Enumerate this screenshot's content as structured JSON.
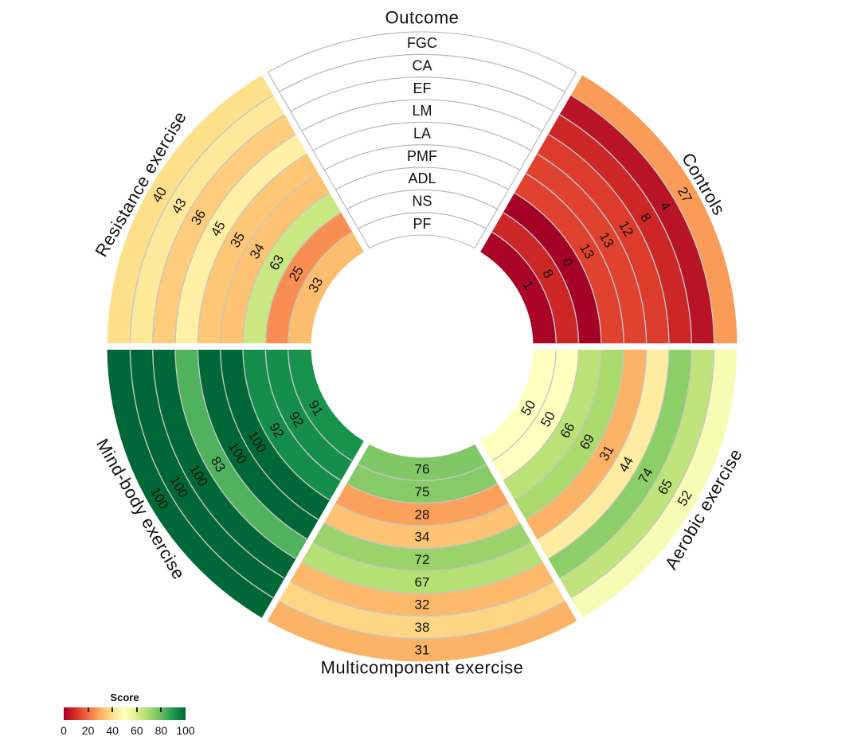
{
  "chart_data": {
    "type": "heatmap",
    "subtype": "circular-annular-heatmap",
    "rings_outer_to_inner": [
      "FGC",
      "CA",
      "EF",
      "LM",
      "LA",
      "PMF",
      "ADL",
      "NS",
      "PF"
    ],
    "sectors": [
      {
        "name": "Outcome",
        "start_deg": 60,
        "end_deg": 120,
        "role": "ring-label-sector",
        "values_outer_to_inner": null
      },
      {
        "name": "Controls",
        "start_deg": 0,
        "end_deg": 60,
        "role": "data",
        "values_outer_to_inner": [
          27,
          4,
          8,
          12,
          13,
          13,
          0,
          8,
          1
        ]
      },
      {
        "name": "Resistance exercise",
        "start_deg": 120,
        "end_deg": 180,
        "role": "data",
        "values_outer_to_inner": [
          40,
          43,
          36,
          45,
          35,
          34,
          63,
          25,
          33
        ]
      },
      {
        "name": "Mind-body exercise",
        "start_deg": 180,
        "end_deg": 240,
        "role": "data",
        "values_outer_to_inner": [
          100,
          100,
          100,
          83,
          100,
          100,
          92,
          92,
          91
        ]
      },
      {
        "name": "Multicomponent exercise",
        "start_deg": 240,
        "end_deg": 300,
        "role": "data",
        "values_outer_to_inner": [
          31,
          38,
          32,
          67,
          72,
          34,
          28,
          75,
          76
        ]
      },
      {
        "name": "Aerobic exercise",
        "start_deg": 300,
        "end_deg": 360,
        "role": "data",
        "values_outer_to_inner": [
          52,
          65,
          74,
          44,
          31,
          69,
          66,
          50,
          50
        ]
      }
    ],
    "legend": {
      "title": "Score",
      "min": 0,
      "max": 100,
      "tick_labels": [
        "0",
        "20",
        "40",
        "60",
        "80",
        "100"
      ],
      "colormap_name": "RdYlGn",
      "colormap_stops": [
        "#a50026",
        "#d73027",
        "#f46d43",
        "#fdae61",
        "#fee08b",
        "#ffffbf",
        "#d9ef8b",
        "#a6d96a",
        "#66bd63",
        "#1a9850",
        "#006837"
      ]
    },
    "colors": {
      "ring_separator": "#c6c6c6",
      "outcome_cell_border": "#b5b5b5",
      "outcome_cell_fill": "#ffffff",
      "text": "#111111"
    },
    "layout_hints": {
      "grid": "ring separators only",
      "legend_position": "bottom-left",
      "direction_deg_ccw_from_east": true
    }
  }
}
